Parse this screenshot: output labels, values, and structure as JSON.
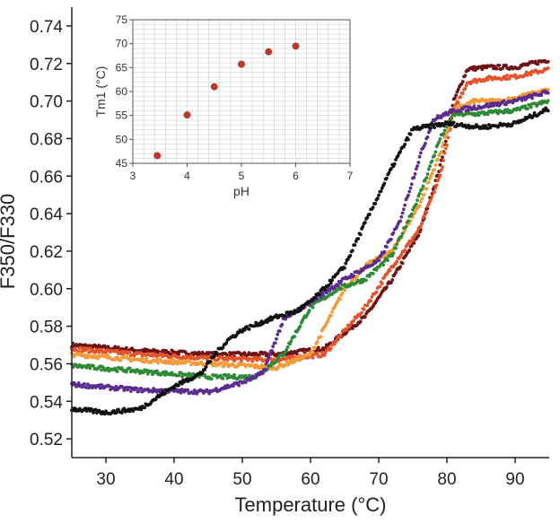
{
  "chart_data": [
    {
      "type": "scatter",
      "title": "",
      "xlabel": "Temperature (°C)",
      "ylabel": "F350/F330",
      "xlim": [
        25,
        95
      ],
      "ylim": [
        0.51,
        0.75
      ],
      "x_ticks": [
        30,
        40,
        50,
        60,
        70,
        80,
        90
      ],
      "y_ticks": [
        0.52,
        0.54,
        0.56,
        0.58,
        0.6,
        0.62,
        0.64,
        0.66,
        0.68,
        0.7,
        0.72,
        0.74
      ],
      "grid": false,
      "legend": "none",
      "series": [
        {
          "color": "#6e1416",
          "x": [
            25,
            35,
            45,
            55,
            62,
            68,
            72,
            76,
            79,
            81,
            83,
            86,
            90,
            95
          ],
          "values": [
            0.57,
            0.567,
            0.565,
            0.565,
            0.568,
            0.585,
            0.605,
            0.63,
            0.665,
            0.7,
            0.717,
            0.718,
            0.718,
            0.722
          ]
        },
        {
          "color": "#e4532a",
          "x": [
            25,
            35,
            45,
            55,
            62,
            68,
            72,
            76,
            79,
            81,
            83,
            86,
            90,
            95
          ],
          "values": [
            0.568,
            0.565,
            0.563,
            0.562,
            0.565,
            0.59,
            0.612,
            0.632,
            0.66,
            0.695,
            0.71,
            0.712,
            0.713,
            0.717
          ]
        },
        {
          "color": "#f39a3b",
          "x": [
            25,
            35,
            45,
            55,
            60,
            65,
            68,
            72,
            76,
            79,
            81,
            84,
            88,
            95
          ],
          "values": [
            0.565,
            0.562,
            0.56,
            0.558,
            0.565,
            0.6,
            0.612,
            0.62,
            0.645,
            0.672,
            0.695,
            0.7,
            0.7,
            0.706
          ]
        },
        {
          "color": "#2f8a37",
          "x": [
            25,
            35,
            45,
            52,
            56,
            60,
            64,
            68,
            72,
            76,
            79,
            81,
            84,
            90,
            95
          ],
          "values": [
            0.559,
            0.556,
            0.553,
            0.553,
            0.565,
            0.59,
            0.6,
            0.605,
            0.618,
            0.65,
            0.68,
            0.693,
            0.693,
            0.695,
            0.7
          ]
        },
        {
          "color": "#5a2d8e",
          "x": [
            25,
            35,
            45,
            50,
            53,
            56,
            60,
            65,
            70,
            73,
            76,
            78,
            81,
            85,
            90,
            95
          ],
          "values": [
            0.549,
            0.546,
            0.545,
            0.55,
            0.555,
            0.583,
            0.593,
            0.605,
            0.615,
            0.635,
            0.67,
            0.69,
            0.695,
            0.697,
            0.7,
            0.705
          ]
        },
        {
          "color": "#111111",
          "x": [
            25,
            30,
            35,
            40,
            44,
            46,
            48,
            50,
            55,
            58,
            60,
            62,
            65,
            68,
            70,
            72,
            75,
            80,
            85,
            90,
            95
          ],
          "values": [
            0.536,
            0.534,
            0.536,
            0.548,
            0.555,
            0.565,
            0.573,
            0.578,
            0.585,
            0.588,
            0.593,
            0.6,
            0.612,
            0.635,
            0.65,
            0.665,
            0.685,
            0.688,
            0.686,
            0.688,
            0.696
          ]
        }
      ]
    },
    {
      "type": "scatter",
      "title": "",
      "xlabel": "pH",
      "ylabel": "Tm1 (°C)",
      "xlim": [
        3,
        7
      ],
      "ylim": [
        45,
        75
      ],
      "x_ticks": [
        3,
        4,
        5,
        6,
        7
      ],
      "y_ticks": [
        45,
        50,
        55,
        60,
        65,
        70,
        75
      ],
      "grid": true,
      "legend": "none",
      "series": [
        {
          "color": "#b8392d",
          "x": [
            3.45,
            4.0,
            4.5,
            5.0,
            5.5,
            6.0
          ],
          "values": [
            46.6,
            55.1,
            61.0,
            65.7,
            68.3,
            69.5
          ]
        }
      ]
    }
  ]
}
